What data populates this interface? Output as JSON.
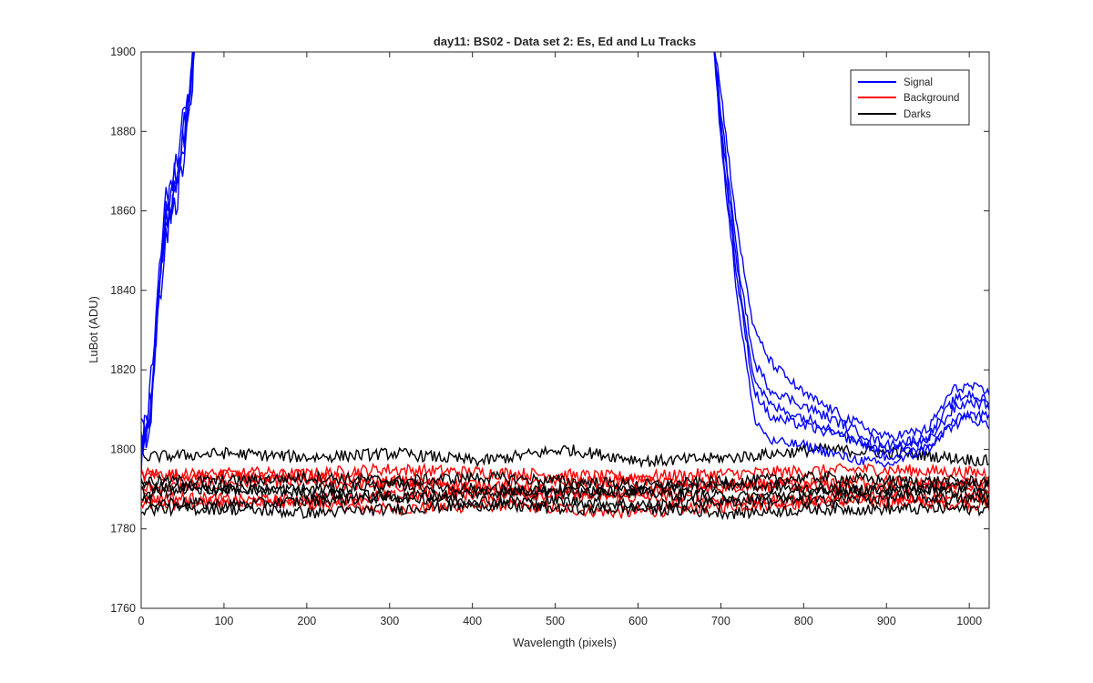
{
  "chart_data": {
    "type": "line",
    "title": "day11: BS02 - Data set 2: Es, Ed and Lu Tracks",
    "xlabel": "Wavelength (pixels)",
    "ylabel": "LuBot (ADU)",
    "xlim": [
      0,
      1024
    ],
    "ylim": [
      1760,
      1900
    ],
    "xticks": [
      0,
      100,
      200,
      300,
      400,
      500,
      600,
      700,
      800,
      900,
      1000
    ],
    "yticks": [
      1760,
      1780,
      1800,
      1820,
      1840,
      1860,
      1880,
      1900
    ],
    "grid": false,
    "legend_position": "top-right",
    "colors": {
      "Signal": "#0000ff",
      "Background": "#ff0000",
      "Darks": "#000000"
    },
    "series": [
      {
        "name": "Signal",
        "color": "#0000ff",
        "note_visible_segments": "rises steeply from ~1800 at x=0 off the top near x=65; re-enters near x=690 and decays to ~1805 by x=900, then bump to ~1815 near x=1000",
        "traces": [
          {
            "x": [
              0,
              10,
              20,
              30,
              40,
              50,
              60,
              65,
              690,
              700,
              720,
              740,
              760,
              800,
              850,
              900,
              950,
              980,
              1000,
              1024
            ],
            "y": [
              1800,
              1812,
              1840,
              1862,
              1870,
              1882,
              1896,
              1905,
              1905,
              1890,
              1855,
              1830,
              1822,
              1814,
              1808,
              1803,
              1805,
              1815,
              1816,
              1814
            ]
          },
          {
            "x": [
              0,
              10,
              20,
              30,
              40,
              50,
              60,
              65,
              690,
              700,
              720,
              740,
              760,
              800,
              850,
              900,
              950,
              980,
              1000,
              1024
            ],
            "y": [
              1803,
              1808,
              1835,
              1858,
              1865,
              1876,
              1892,
              1905,
              1905,
              1885,
              1848,
              1822,
              1815,
              1811,
              1806,
              1801,
              1803,
              1812,
              1814,
              1812
            ]
          },
          {
            "x": [
              0,
              10,
              20,
              30,
              40,
              50,
              60,
              65,
              690,
              700,
              720,
              740,
              760,
              800,
              850,
              900,
              950,
              980,
              1000,
              1024
            ],
            "y": [
              1805,
              1806,
              1832,
              1855,
              1860,
              1872,
              1888,
              1905,
              1905,
              1880,
              1842,
              1815,
              1808,
              1806,
              1803,
              1800,
              1802,
              1810,
              1812,
              1811
            ]
          },
          {
            "x": [
              0,
              10,
              20,
              30,
              40,
              50,
              60,
              65,
              690,
              700,
              720,
              740,
              760,
              800,
              850,
              900,
              950,
              980,
              1000,
              1024
            ],
            "y": [
              1797,
              1810,
              1838,
              1860,
              1868,
              1878,
              1895,
              1905,
              1905,
              1878,
              1838,
              1808,
              1802,
              1801,
              1798,
              1796,
              1800,
              1807,
              1809,
              1808
            ]
          },
          {
            "x": [
              0,
              10,
              20,
              30,
              40,
              50,
              60,
              65,
              690,
              700,
              720,
              740,
              760,
              800,
              850,
              900,
              950,
              980,
              1000,
              1024
            ],
            "y": [
              1801,
              1807,
              1836,
              1857,
              1862,
              1874,
              1890,
              1905,
              1905,
              1883,
              1845,
              1818,
              1811,
              1808,
              1804,
              1798,
              1801,
              1806,
              1808,
              1806
            ]
          }
        ]
      },
      {
        "name": "Background",
        "color": "#ff0000",
        "traces": [
          {
            "base": 1786,
            "drift": [
              0,
              1,
              -1,
              0,
              -2,
              0,
              1,
              0
            ]
          },
          {
            "base": 1790,
            "drift": [
              0,
              2,
              1,
              0,
              -1,
              1,
              0,
              1
            ]
          },
          {
            "base": 1793,
            "drift": [
              1,
              0,
              2,
              1,
              0,
              1,
              2,
              1
            ]
          },
          {
            "base": 1788,
            "drift": [
              0,
              -1,
              0,
              1,
              0,
              -1,
              0,
              0
            ]
          },
          {
            "base": 1791,
            "drift": [
              2,
              3,
              1,
              0,
              1,
              0,
              1,
              0
            ]
          }
        ]
      },
      {
        "name": "Darks",
        "color": "#000000",
        "traces": [
          {
            "base": 1798,
            "drift": [
              0,
              1,
              0,
              1,
              -1,
              2,
              -1,
              0,
              2,
              1,
              -1
            ]
          },
          {
            "base": 1792,
            "drift": [
              0,
              0,
              1,
              0,
              1,
              0,
              -1,
              0,
              1,
              0,
              0
            ]
          },
          {
            "base": 1789,
            "drift": [
              0,
              1,
              0,
              -1,
              0,
              1,
              0,
              -1,
              0,
              1,
              0
            ]
          },
          {
            "base": 1787,
            "drift": [
              0,
              -1,
              0,
              1,
              0,
              0,
              -1,
              0,
              0,
              1,
              0
            ]
          },
          {
            "base": 1790,
            "drift": [
              1,
              0,
              0,
              1,
              0,
              -1,
              0,
              1,
              0,
              0,
              1
            ]
          },
          {
            "base": 1785,
            "drift": [
              0,
              0,
              -1,
              0,
              1,
              0,
              0,
              -1,
              0,
              0,
              0
            ]
          }
        ]
      }
    ]
  }
}
